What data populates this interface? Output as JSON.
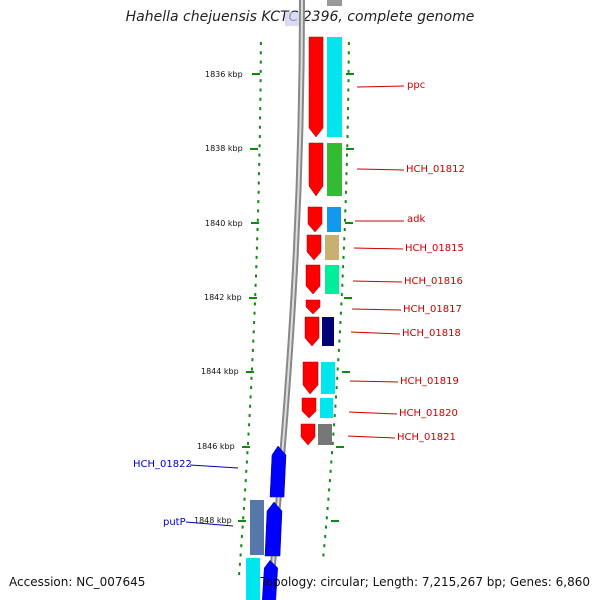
{
  "header": {
    "title": "Hahella chejuensis KCTC 2396, complete genome"
  },
  "footer": {
    "accession": "Accession: NC_007645",
    "summary": "Topology: circular; Length: 7,215,267 bp; Genes: 6,860"
  },
  "scale": {
    "ticks": [
      "1836 kbp",
      "1838 kbp",
      "1840 kbp",
      "1842 kbp",
      "1844 kbp",
      "1846 kbp",
      "1848 kbp"
    ]
  },
  "genes": [
    {
      "name": "ppc",
      "color": "#cc0000"
    },
    {
      "name": "HCH_01812",
      "color": "#cc0000"
    },
    {
      "name": "adk",
      "color": "#cc0000"
    },
    {
      "name": "HCH_01815",
      "color": "#cc0000"
    },
    {
      "name": "HCH_01816",
      "color": "#cc0000"
    },
    {
      "name": "HCH_01817",
      "color": "#cc0000"
    },
    {
      "name": "HCH_01818",
      "color": "#cc0000"
    },
    {
      "name": "HCH_01819",
      "color": "#cc0000"
    },
    {
      "name": "HCH_01820",
      "color": "#cc0000"
    },
    {
      "name": "HCH_01821",
      "color": "#cc0000"
    },
    {
      "name": "HCH_01822",
      "color": "#0000bb"
    },
    {
      "name": "putP",
      "color": "#0000bb"
    }
  ],
  "colors": {
    "forward_strand": "#ff0000",
    "reverse_strand": "#0000ff",
    "cds_cyan": "#00e5ee",
    "cds_green": "#33bb33",
    "cds_khaki": "#c8b070",
    "cds_seagreen": "#00ee99",
    "cds_navy": "#000077",
    "cds_grey": "#777777",
    "tick_green": "#118811",
    "backbone_grey": "#888888"
  }
}
